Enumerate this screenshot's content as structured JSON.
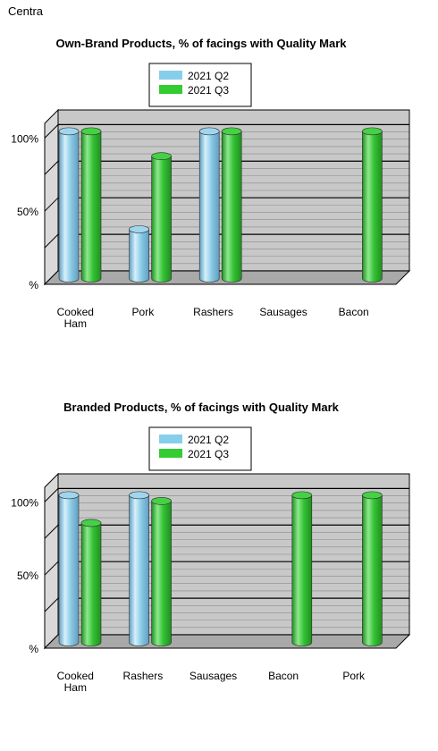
{
  "page": {
    "store_name": "Centra"
  },
  "colors": {
    "q2": "#87ceeb",
    "q3": "#33cc33",
    "plot_back": "#c8c8c8",
    "plot_floor": "#a9a9a9"
  },
  "chart_data": [
    {
      "type": "bar",
      "title": "Own-Brand Products, % of facings with Quality Mark",
      "categories": [
        [
          "Cooked",
          "Ham"
        ],
        [
          "Pork"
        ],
        [
          "Rashers"
        ],
        [
          "Sausages"
        ],
        [
          "Bacon"
        ]
      ],
      "series": [
        {
          "name": "2021 Q2",
          "values": [
            100,
            33,
            100,
            null,
            null
          ]
        },
        {
          "name": "2021 Q3",
          "values": [
            100,
            83,
            100,
            null,
            100
          ]
        }
      ],
      "yticks": [
        "%",
        "50%",
        "100%"
      ],
      "ylim": [
        0,
        110
      ],
      "grid": true,
      "legend": "top"
    },
    {
      "type": "bar",
      "title": "Branded Products, % of facings with Quality Mark",
      "categories": [
        [
          "Cooked",
          "Ham"
        ],
        [
          "Rashers"
        ],
        [
          "Sausages"
        ],
        [
          "Bacon"
        ],
        [
          "Pork"
        ]
      ],
      "series": [
        {
          "name": "2021 Q2",
          "values": [
            100,
            100,
            null,
            null,
            null
          ]
        },
        {
          "name": "2021 Q3",
          "values": [
            81,
            96,
            null,
            100,
            100
          ]
        }
      ],
      "yticks": [
        "%",
        "50%",
        "100%"
      ],
      "ylim": [
        0,
        110
      ],
      "grid": true,
      "legend": "top"
    }
  ]
}
